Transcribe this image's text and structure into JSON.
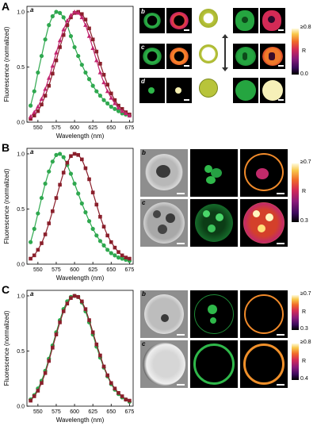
{
  "panels": {
    "A": {
      "letter": "A",
      "chart_letter": "a",
      "micro_letters": [
        "b",
        "c",
        "d"
      ],
      "colorbar": {
        "max": "≥0.8",
        "min": "0.0",
        "label": "R"
      }
    },
    "B": {
      "letter": "B",
      "chart_letter": "a",
      "micro_letters": [
        "b",
        "c"
      ],
      "colorbar": {
        "max": "≥0.7",
        "min": "0.3",
        "label": "R"
      }
    },
    "C": {
      "letter": "C",
      "chart_letter": "a",
      "micro_letters": [
        "b",
        "c"
      ],
      "colorbar_b": {
        "max": "≥0.7",
        "min": "0.3",
        "label": "R"
      },
      "colorbar_c": {
        "max": "≥0.8",
        "min": "0.4",
        "label": "R"
      }
    }
  },
  "colors": {
    "green": "#2fa84f",
    "darkred": "#8a1f2b",
    "magenta": "#c2256f"
  },
  "chart_data": [
    {
      "type": "line",
      "xlabel": "Wavelength (nm)",
      "ylabel": "Fluorescence (normalized)",
      "xlim": [
        535,
        680
      ],
      "ylim": [
        0,
        1.05
      ],
      "xticks": [
        "550",
        "575",
        "600",
        "625",
        "650",
        "675"
      ],
      "yticks": [
        "0.0",
        "0.5",
        "1.0"
      ],
      "x": [
        540,
        545,
        550,
        555,
        560,
        565,
        570,
        575,
        580,
        585,
        590,
        595,
        600,
        605,
        610,
        615,
        620,
        625,
        630,
        635,
        640,
        645,
        650,
        655,
        660,
        665,
        670,
        675
      ],
      "series": [
        {
          "color": "#2fa84f",
          "marker": "circle",
          "values": [
            0.15,
            0.28,
            0.45,
            0.6,
            0.75,
            0.88,
            0.96,
            1.0,
            0.99,
            0.95,
            0.88,
            0.78,
            0.68,
            0.6,
            0.52,
            0.45,
            0.39,
            0.33,
            0.28,
            0.24,
            0.2,
            0.17,
            0.14,
            0.12,
            0.1,
            0.08,
            0.07,
            0.06
          ]
        },
        {
          "color": "#8a1f2b",
          "marker": "square",
          "values": [
            0.03,
            0.06,
            0.1,
            0.16,
            0.24,
            0.33,
            0.44,
            0.56,
            0.68,
            0.79,
            0.88,
            0.95,
            0.99,
            1.0,
            0.98,
            0.93,
            0.85,
            0.75,
            0.64,
            0.53,
            0.43,
            0.34,
            0.26,
            0.2,
            0.15,
            0.12,
            0.09,
            0.07
          ]
        },
        {
          "color": "#c2256f",
          "marker": "triangle",
          "values": [
            0.05,
            0.09,
            0.14,
            0.21,
            0.3,
            0.4,
            0.51,
            0.63,
            0.74,
            0.84,
            0.92,
            0.97,
            1.0,
            0.99,
            0.95,
            0.88,
            0.78,
            0.67,
            0.56,
            0.45,
            0.36,
            0.28,
            0.22,
            0.17,
            0.13,
            0.1,
            0.08,
            0.06
          ]
        }
      ]
    },
    {
      "type": "line",
      "xlabel": "Wavelength (nm)",
      "ylabel": "Fluorescence (normalized)",
      "xlim": [
        535,
        680
      ],
      "ylim": [
        0,
        1.05
      ],
      "xticks": [
        "550",
        "575",
        "600",
        "625",
        "650",
        "675"
      ],
      "yticks": [
        "0.0",
        "0.5",
        "1.0"
      ],
      "x": [
        540,
        545,
        550,
        555,
        560,
        565,
        570,
        575,
        580,
        585,
        590,
        595,
        600,
        605,
        610,
        615,
        620,
        625,
        630,
        635,
        640,
        645,
        650,
        655,
        660,
        665,
        670,
        675
      ],
      "series": [
        {
          "color": "#2fa84f",
          "marker": "circle",
          "values": [
            0.2,
            0.32,
            0.46,
            0.6,
            0.73,
            0.84,
            0.93,
            0.99,
            1.0,
            0.97,
            0.9,
            0.82,
            0.73,
            0.64,
            0.55,
            0.47,
            0.39,
            0.32,
            0.26,
            0.21,
            0.17,
            0.13,
            0.1,
            0.08,
            0.06,
            0.05,
            0.04,
            0.03
          ]
        },
        {
          "color": "#8a1f2b",
          "marker": "square",
          "values": [
            0.05,
            0.08,
            0.13,
            0.19,
            0.27,
            0.37,
            0.48,
            0.6,
            0.72,
            0.83,
            0.92,
            0.98,
            1.0,
            0.99,
            0.95,
            0.87,
            0.77,
            0.65,
            0.54,
            0.43,
            0.34,
            0.26,
            0.2,
            0.15,
            0.11,
            0.08,
            0.06,
            0.05
          ]
        }
      ]
    },
    {
      "type": "line",
      "xlabel": "Wavelength (nm)",
      "ylabel": "Fluorescence (normalized)",
      "xlim": [
        535,
        680
      ],
      "ylim": [
        0,
        1.05
      ],
      "xticks": [
        "550",
        "575",
        "600",
        "625",
        "650",
        "675"
      ],
      "yticks": [
        "0.0",
        "0.5",
        "1.0"
      ],
      "x": [
        540,
        545,
        550,
        555,
        560,
        565,
        570,
        575,
        580,
        585,
        590,
        595,
        600,
        605,
        610,
        615,
        620,
        625,
        630,
        635,
        640,
        645,
        650,
        655,
        660,
        665,
        670,
        675
      ],
      "series": [
        {
          "color": "#2fa84f",
          "marker": "circle",
          "values": [
            0.06,
            0.1,
            0.16,
            0.23,
            0.32,
            0.43,
            0.55,
            0.67,
            0.78,
            0.88,
            0.95,
            0.99,
            1.0,
            0.99,
            0.94,
            0.86,
            0.76,
            0.65,
            0.54,
            0.44,
            0.35,
            0.27,
            0.2,
            0.15,
            0.11,
            0.08,
            0.06,
            0.04
          ]
        },
        {
          "color": "#8a1f2b",
          "marker": "square",
          "values": [
            0.05,
            0.09,
            0.14,
            0.21,
            0.3,
            0.41,
            0.53,
            0.65,
            0.76,
            0.86,
            0.93,
            0.98,
            1.0,
            0.99,
            0.95,
            0.88,
            0.78,
            0.67,
            0.56,
            0.46,
            0.36,
            0.28,
            0.21,
            0.16,
            0.12,
            0.09,
            0.06,
            0.05
          ]
        }
      ]
    }
  ]
}
